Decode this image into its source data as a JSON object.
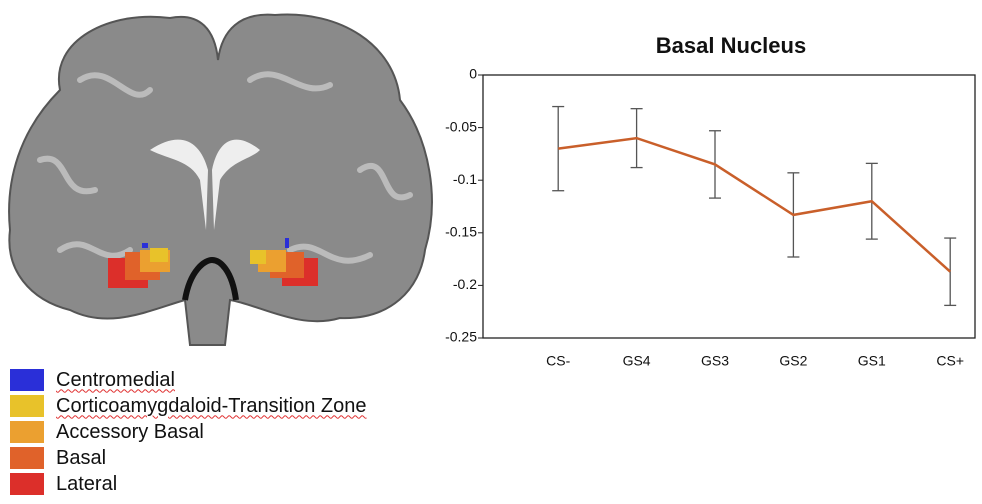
{
  "chart_data": {
    "type": "line",
    "title": "Basal Nucleus",
    "categories": [
      "CS-",
      "GS4",
      "GS3",
      "GS2",
      "GS1",
      "CS+"
    ],
    "series": [
      {
        "color": "#c95f2a",
        "values": [
          -0.07,
          -0.06,
          -0.085,
          -0.133,
          -0.12,
          -0.187
        ],
        "errors": [
          0.04,
          0.028,
          0.032,
          0.04,
          0.036,
          0.032
        ]
      }
    ],
    "ylim": [
      -0.25,
      0
    ],
    "yticks": [
      0,
      -0.05,
      -0.1,
      -0.15,
      -0.2,
      -0.25
    ]
  },
  "figure_legend": [
    {
      "label": "Centromedial",
      "color": "#2a2fd8"
    },
    {
      "label": "Corticoamygdaloid-Transition Zone",
      "color": "#e8c22a"
    },
    {
      "label": "Accessory Basal",
      "color": "#eba030"
    },
    {
      "label": "Basal",
      "color": "#e0622a"
    },
    {
      "label": "Lateral",
      "color": "#dc2f2a"
    }
  ]
}
